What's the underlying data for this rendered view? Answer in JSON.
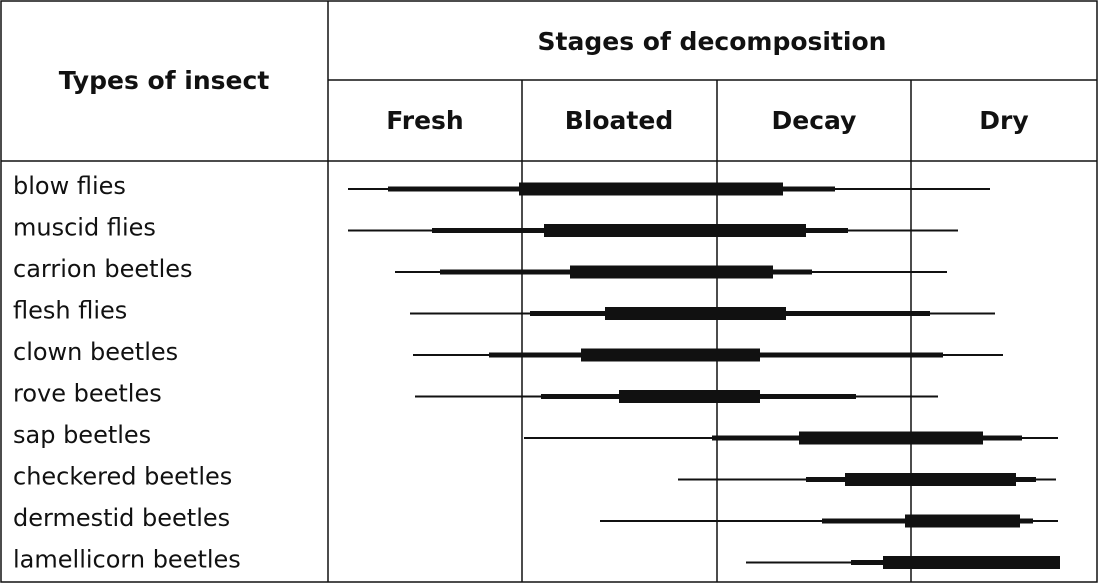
{
  "header": {
    "title": "Types of insect",
    "stages_title": "Stages of decomposition",
    "stages": [
      "Fresh",
      "Bloated",
      "Decay",
      "Dry"
    ]
  },
  "rows": [
    "blow flies",
    "muscid flies",
    "carrion beetles",
    "flesh flies",
    "clown beetles",
    "rove beetles",
    "sap beetles",
    "checkered beetles",
    "dermestid beetles",
    "lamellicorn beetles"
  ]
}
